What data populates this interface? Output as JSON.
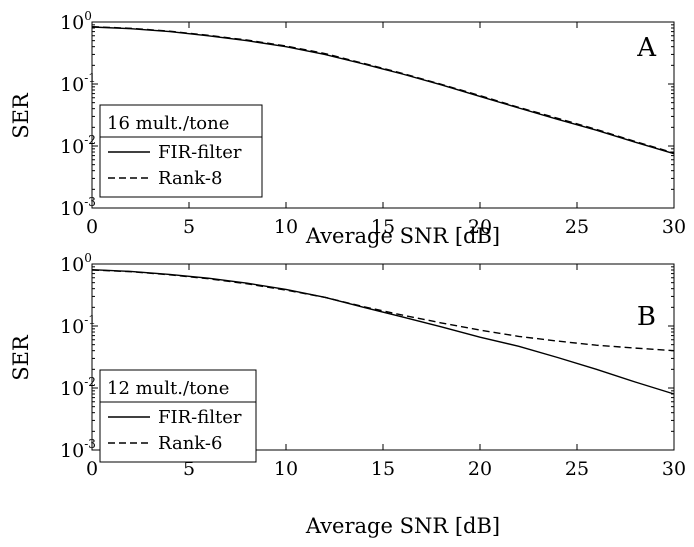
{
  "chart_data": [
    {
      "type": "line",
      "panel_label": "A",
      "xlabel": "Average   SNR      [dB]",
      "ylabel": "SER",
      "xlim": [
        0,
        30
      ],
      "ylim": [
        0.001,
        1
      ],
      "yscale": "log",
      "x_ticks": [
        "0",
        "5",
        "10",
        "15",
        "20",
        "25",
        "30"
      ],
      "y_ticks": [
        {
          "value": 1,
          "base": "10",
          "exp": "0"
        },
        {
          "value": 0.1,
          "base": "10",
          "exp": "-1"
        },
        {
          "value": 0.01,
          "base": "10",
          "exp": "-2"
        },
        {
          "value": 0.001,
          "base": "10",
          "exp": "-3"
        }
      ],
      "grid": false,
      "legend": {
        "position": "lower-left",
        "title": "16 mult./tone",
        "entries": [
          "FIR-filter",
          "Rank-8"
        ]
      },
      "x": [
        0,
        2,
        4,
        6,
        8,
        10,
        12,
        14,
        16,
        18,
        20,
        22,
        24,
        26,
        28,
        30
      ],
      "series": [
        {
          "name": "FIR-filter",
          "style": "solid",
          "values": [
            0.83,
            0.78,
            0.7,
            0.6,
            0.5,
            0.4,
            0.3,
            0.21,
            0.145,
            0.097,
            0.063,
            0.041,
            0.027,
            0.018,
            0.0115,
            0.0075
          ]
        },
        {
          "name": "Rank-8",
          "style": "dashed",
          "values": [
            0.84,
            0.79,
            0.71,
            0.61,
            0.51,
            0.41,
            0.31,
            0.215,
            0.148,
            0.099,
            0.065,
            0.042,
            0.028,
            0.0185,
            0.0118,
            0.0077
          ]
        }
      ]
    },
    {
      "type": "line",
      "panel_label": "B",
      "xlabel": "Average   SNR      [dB]",
      "ylabel": "SER",
      "xlim": [
        0,
        30
      ],
      "ylim": [
        0.001,
        1
      ],
      "yscale": "log",
      "x_ticks": [
        "0",
        "5",
        "10",
        "15",
        "20",
        "25",
        "30"
      ],
      "y_ticks": [
        {
          "value": 1,
          "base": "10",
          "exp": "0"
        },
        {
          "value": 0.1,
          "base": "10",
          "exp": "-1"
        },
        {
          "value": 0.01,
          "base": "10",
          "exp": "-2"
        },
        {
          "value": 0.001,
          "base": "10",
          "exp": "-3"
        }
      ],
      "grid": false,
      "legend": {
        "position": "lower-left",
        "title": "12 mult./tone",
        "entries": [
          "FIR-filter",
          "Rank-6"
        ]
      },
      "x": [
        0,
        2,
        4,
        6,
        8,
        10,
        12,
        14,
        16,
        18,
        20,
        22,
        24,
        26,
        28,
        30
      ],
      "series": [
        {
          "name": "FIR-filter",
          "style": "solid",
          "values": [
            0.81,
            0.76,
            0.68,
            0.59,
            0.49,
            0.39,
            0.29,
            0.2,
            0.14,
            0.097,
            0.066,
            0.047,
            0.031,
            0.02,
            0.0125,
            0.008
          ]
        },
        {
          "name": "Rank-6",
          "style": "dashed",
          "values": [
            0.8,
            0.75,
            0.67,
            0.58,
            0.48,
            0.38,
            0.29,
            0.205,
            0.15,
            0.112,
            0.086,
            0.068,
            0.057,
            0.049,
            0.044,
            0.04
          ]
        }
      ]
    }
  ]
}
